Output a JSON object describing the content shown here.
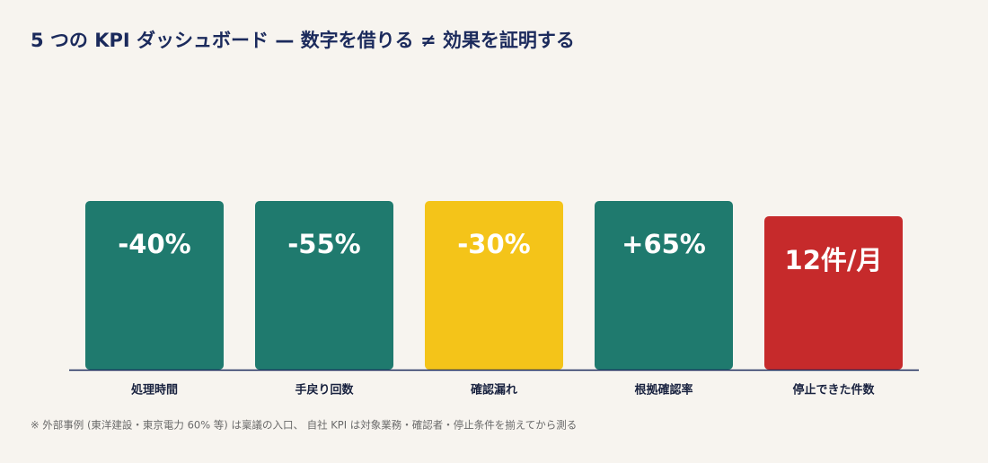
{
  "header": {
    "title": "5 つの KPI ダッシュボード — 数字を借りる ≠ 効果を証明する"
  },
  "cards": [
    {
      "value": "-40%",
      "label": "処理時間",
      "color": "#1f7a6e"
    },
    {
      "value": "-55%",
      "label": "手戻り回数",
      "color": "#1f7a6e"
    },
    {
      "value": "-30%",
      "label": "確認漏れ",
      "color": "#f4c419"
    },
    {
      "value": "+65%",
      "label": "根拠確認率",
      "color": "#1f7a6e"
    },
    {
      "value": "12件/月",
      "label": "停止できた件数",
      "color": "#c62a2b"
    }
  ],
  "footnote": "※ 外部事例 (東洋建設・東京電力 60% 等) は稟議の入口、 自社 KPI は対象業務・確認者・停止条件を揃えてから測る"
}
